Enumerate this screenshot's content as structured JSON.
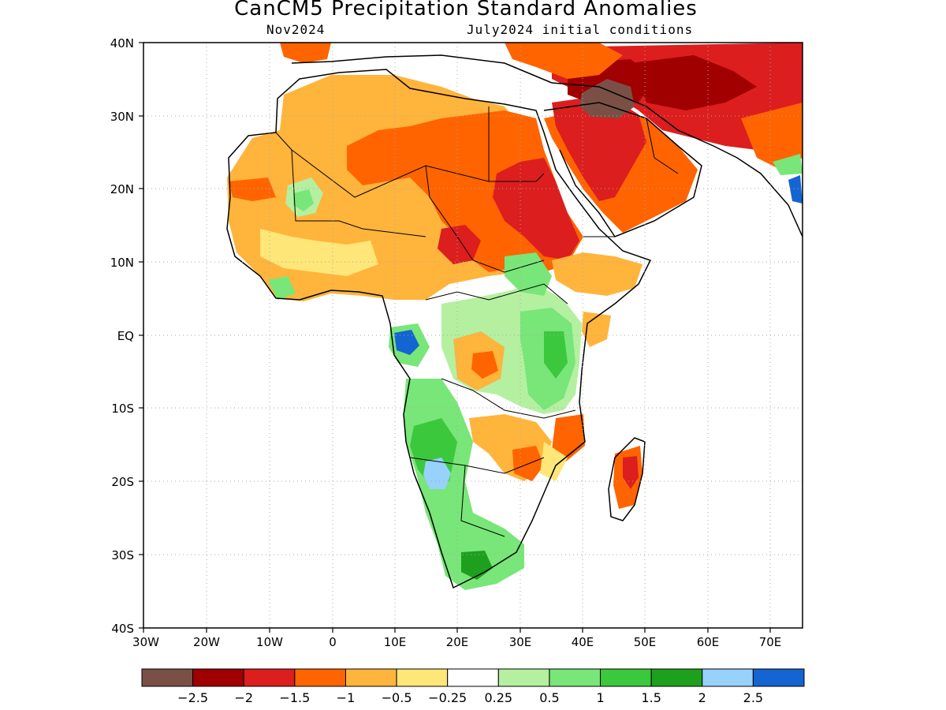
{
  "title": "CanCM5 Precipitation Standard Anomalies",
  "subtitle_left": "Nov2024",
  "subtitle_right": "July2024 initial conditions",
  "lon_ticks": [
    "30W",
    "20W",
    "10W",
    "0",
    "10E",
    "20E",
    "30E",
    "40E",
    "50E",
    "60E",
    "70E"
  ],
  "lat_ticks": [
    "40N",
    "30N",
    "20N",
    "10N",
    "EQ",
    "10S",
    "20S",
    "30S",
    "40S"
  ],
  "colorbar": {
    "colors": [
      "#7a5046",
      "#a00000",
      "#dc1e1e",
      "#ff6400",
      "#ffb43c",
      "#ffe678",
      "#ffffff",
      "#b4f0a0",
      "#78e678",
      "#3cc83c",
      "#1ea01e",
      "#96d2fa",
      "#1464d2"
    ],
    "labels": [
      "−2.5",
      "−2",
      "−1.5",
      "−1",
      "−0.5",
      "−0.25",
      "0.25",
      "0.5",
      "1",
      "1.5",
      "2",
      "2.5"
    ]
  },
  "palette": {
    "brown": "#7a5046",
    "darkred": "#a00000",
    "red": "#dc1e1e",
    "orange": "#ff6400",
    "lightorange": "#ffb43c",
    "yellow": "#ffe678",
    "lightgreen": "#b4f0a0",
    "green": "#78e678",
    "midgreen": "#3cc83c",
    "darkgreen": "#1ea01e",
    "lightblue": "#96d2fa",
    "blue": "#1464d2"
  }
}
